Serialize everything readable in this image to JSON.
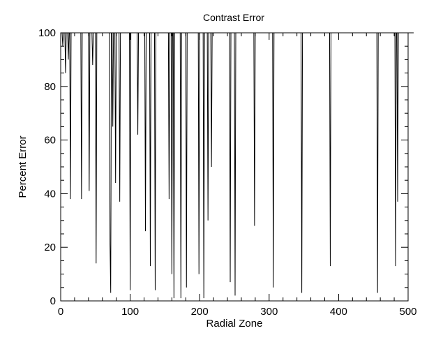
{
  "chart_data": {
    "type": "line",
    "title": "Contrast Error",
    "xlabel": "Radial Zone",
    "ylabel": "Percent Error",
    "xlim": [
      0,
      500
    ],
    "ylim": [
      0,
      100
    ],
    "grid": false,
    "x_ticks": [
      {
        "value": 0,
        "label": "0"
      },
      {
        "value": 100,
        "label": "100"
      },
      {
        "value": 200,
        "label": "200"
      },
      {
        "value": 300,
        "label": "300"
      },
      {
        "value": 400,
        "label": "400"
      },
      {
        "value": 500,
        "label": "500"
      }
    ],
    "y_ticks": [
      {
        "value": 0,
        "label": "0"
      },
      {
        "value": 20,
        "label": "20"
      },
      {
        "value": 40,
        "label": "40"
      },
      {
        "value": 60,
        "label": "60"
      },
      {
        "value": 80,
        "label": "80"
      },
      {
        "value": 100,
        "label": "100"
      }
    ],
    "x_minor_step": 20,
    "y_minor_step": 5,
    "series": [
      {
        "color": "#000000",
        "x_start": 0,
        "x_step": 1,
        "values": [
          100,
          100,
          100,
          95,
          100,
          100,
          100,
          85,
          100,
          100,
          100,
          90,
          100,
          100,
          38,
          100,
          100,
          100,
          100,
          100,
          100,
          100,
          100,
          100,
          100,
          100,
          100,
          100,
          100,
          100,
          38,
          100,
          100,
          100,
          100,
          100,
          100,
          100,
          100,
          100,
          100,
          41,
          100,
          100,
          100,
          100,
          88,
          100,
          100,
          100,
          100,
          14,
          100,
          100,
          100,
          100,
          100,
          100,
          100,
          100,
          100,
          100,
          100,
          100,
          100,
          100,
          100,
          100,
          100,
          100,
          100,
          21,
          3,
          100,
          100,
          65,
          100,
          100,
          100,
          44,
          100,
          100,
          100,
          100,
          100,
          37,
          100,
          100,
          100,
          100,
          100,
          100,
          100,
          100,
          100,
          100,
          100,
          100,
          100,
          100,
          4,
          100,
          100,
          100,
          100,
          100,
          100,
          100,
          100,
          100,
          100,
          62,
          100,
          100,
          100,
          100,
          100,
          100,
          100,
          100,
          100,
          100,
          26,
          100,
          100,
          100,
          100,
          100,
          100,
          13,
          100,
          100,
          100,
          100,
          100,
          100,
          4,
          100,
          100,
          100,
          100,
          100,
          100,
          100,
          100,
          100,
          100,
          100,
          100,
          100,
          100,
          100,
          100,
          100,
          100,
          100,
          38,
          100,
          100,
          100,
          10,
          100,
          100,
          1,
          100,
          100,
          100,
          100,
          100,
          100,
          100,
          100,
          100,
          1,
          100,
          100,
          100,
          100,
          100,
          100,
          100,
          5,
          100,
          100,
          100,
          100,
          100,
          100,
          100,
          100,
          100,
          100,
          100,
          100,
          100,
          100,
          100,
          100,
          100,
          10,
          100,
          100,
          100,
          100,
          100,
          100,
          1,
          100,
          100,
          100,
          100,
          100,
          30,
          100,
          100,
          100,
          100,
          50,
          100,
          100,
          100,
          100,
          100,
          100,
          100,
          100,
          100,
          100,
          100,
          100,
          100,
          100,
          100,
          100,
          100,
          100,
          100,
          100,
          100,
          100,
          100,
          100,
          100,
          100,
          7,
          100,
          100,
          100,
          100,
          100,
          100,
          2,
          100,
          100,
          100,
          100,
          100,
          100,
          100,
          100,
          100,
          100,
          100,
          100,
          100,
          100,
          100,
          100,
          100,
          100,
          100,
          100,
          100,
          100,
          100,
          100,
          100,
          100,
          100,
          28,
          100,
          100,
          100,
          100,
          100,
          100,
          100,
          100,
          100,
          100,
          100,
          100,
          100,
          100,
          100,
          100,
          100,
          100,
          100,
          100,
          100,
          100,
          100,
          100,
          100,
          100,
          5,
          100,
          100,
          100,
          100,
          100,
          100,
          100,
          100,
          100,
          100,
          100,
          100,
          100,
          100,
          100,
          100,
          100,
          100,
          100,
          100,
          100,
          100,
          100,
          100,
          100,
          100,
          100,
          100,
          100,
          100,
          100,
          100,
          100,
          100,
          100,
          100,
          100,
          100,
          100,
          100,
          3,
          100,
          100,
          100,
          100,
          100,
          100,
          100,
          100,
          100,
          100,
          100,
          100,
          100,
          100,
          100,
          100,
          100,
          100,
          100,
          100,
          100,
          100,
          100,
          100,
          100,
          100,
          100,
          100,
          100,
          100,
          100,
          100,
          100,
          100,
          100,
          100,
          100,
          100,
          100,
          100,
          13,
          100,
          100,
          100,
          100,
          100,
          100,
          100,
          100,
          100,
          100,
          100,
          100,
          100,
          100,
          100,
          100,
          100,
          100,
          100,
          100,
          100,
          100,
          100,
          100,
          100,
          100,
          100,
          100,
          100,
          100,
          100,
          100,
          100,
          100,
          100,
          100,
          100,
          100,
          100,
          100,
          100,
          100,
          100,
          100,
          100,
          100,
          100,
          100,
          100,
          100,
          100,
          100,
          100,
          100,
          100,
          100,
          100,
          100,
          100,
          100,
          100,
          100,
          100,
          100,
          100,
          100,
          100,
          3,
          100,
          100,
          100,
          100,
          100,
          100,
          100,
          100,
          100,
          100,
          100,
          100,
          100,
          100,
          100,
          100,
          100,
          100,
          100,
          100,
          100,
          100,
          100,
          100,
          100,
          13,
          100,
          100,
          37,
          100,
          100,
          100,
          100,
          100,
          100,
          100,
          100,
          100,
          100,
          100,
          100,
          100,
          100,
          100,
          100,
          100,
          100,
          100,
          100,
          100,
          100,
          100
        ]
      }
    ]
  }
}
